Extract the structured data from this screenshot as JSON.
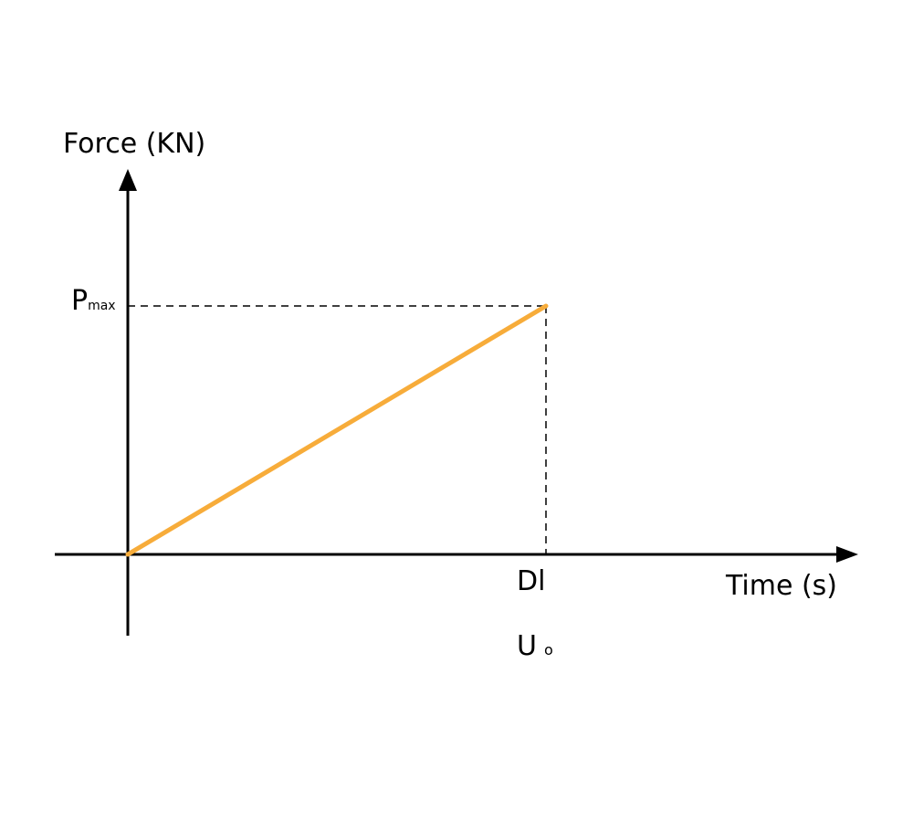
{
  "chart_data": {
    "type": "line",
    "ylabel": "Force (KN)",
    "xlabel": "Time (s)",
    "series": [
      {
        "points": [
          {
            "x": 0,
            "y": 0
          },
          {
            "x": 1,
            "y": 1
          }
        ]
      }
    ],
    "xlim": [
      -0.18,
      1.75
    ],
    "ylim": [
      -0.33,
      1.65
    ],
    "y_marker": {
      "value": 1,
      "label_main": "P",
      "label_sub": "max"
    },
    "x_marker": {
      "value": 1,
      "label_line1": "Dl",
      "label_line2_main": "U",
      "label_line2_sub": "o"
    },
    "grid": false,
    "legend": "none",
    "colors": {
      "line": "#f7ac3a",
      "axis": "#000000",
      "guide": "#000000"
    }
  }
}
